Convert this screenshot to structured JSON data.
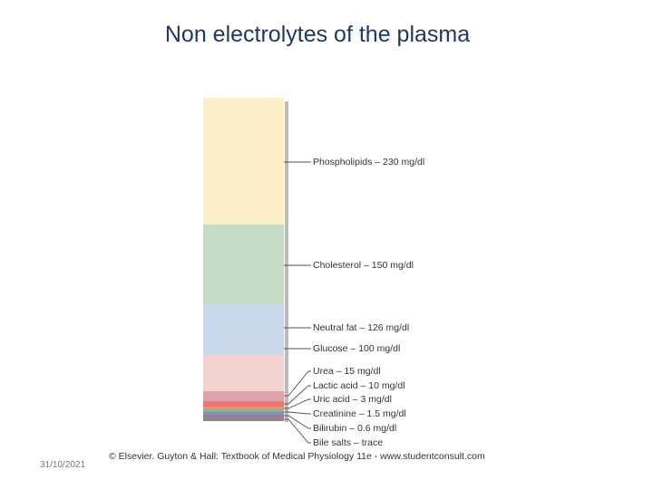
{
  "slide": {
    "title": "Non electrolytes of the plasma",
    "date": "31/10/2021",
    "caption": "© Elsevier. Guyton & Hall: Textbook of Medical Physiology 11e - www.studentconsult.com",
    "figure": {
      "labels": [
        "Phospholipids – 230 mg/dl",
        "Cholesterol – 150 mg/dl",
        "Neutral fat – 126 mg/dl",
        "Glucose – 100 mg/dl",
        "Urea – 15 mg/dl",
        "Lactic acid – 10 mg/dl",
        "Uric acid – 3 mg/dl",
        "Creatinine – 1.5 mg/dl",
        "Bilirubin – 0.6 mg/dl",
        "Bile salts – trace"
      ]
    }
  }
}
